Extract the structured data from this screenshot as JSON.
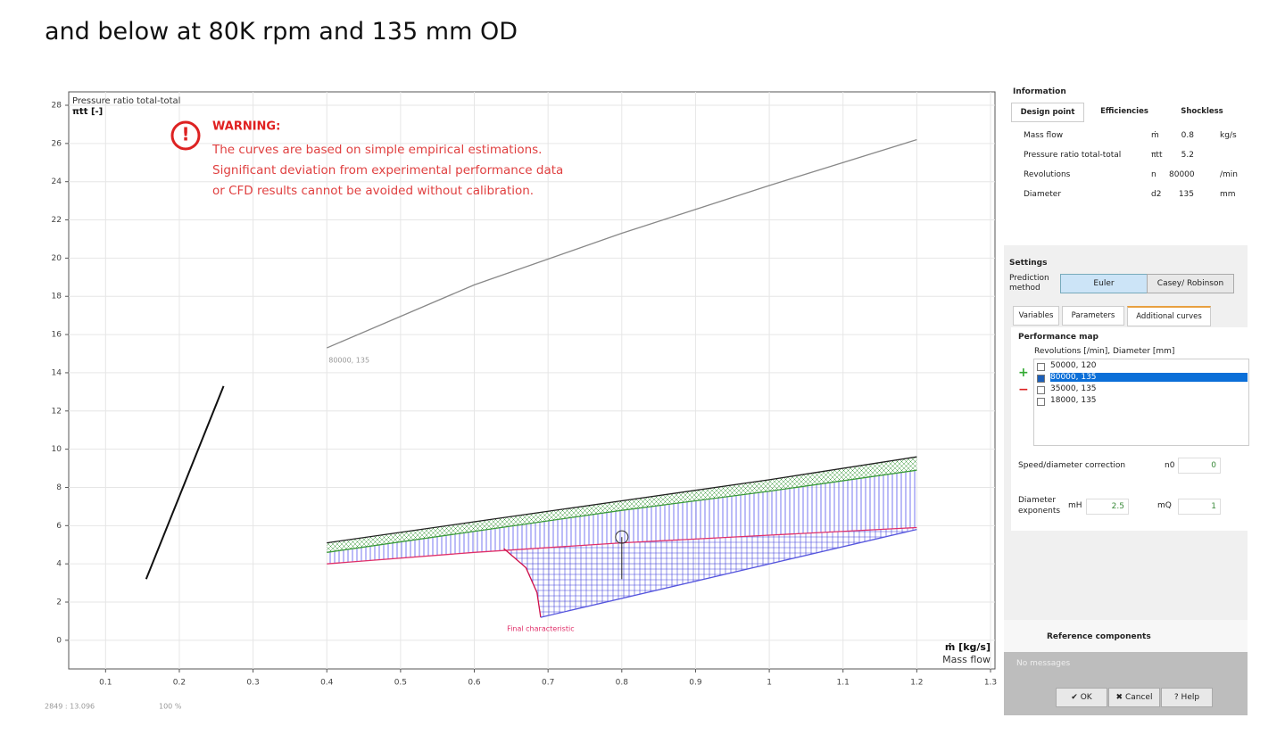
{
  "heading": "and below at 80K rpm and 135 mm OD",
  "chart_data": {
    "type": "line",
    "y_label_title": "Pressure ratio total-total",
    "y_label": "πtt [-]",
    "x_label": "ṁ [kg/s]",
    "x_label_sub": "Mass flow",
    "warning_title": "WARNING:",
    "warning_lines": [
      "The curves are based on simple empirical estimations.",
      "Significant deviation from experimental performance data",
      "or CFD results cannot be avoided without calibration."
    ],
    "xlim": [
      0.05,
      1.3
    ],
    "ylim": [
      -1.5,
      28.7
    ],
    "xticks": [
      0.1,
      0.2,
      0.3,
      0.4,
      0.5,
      0.6,
      0.7,
      0.8,
      0.9,
      1,
      1.1,
      1.2,
      1.3
    ],
    "yticks": [
      0,
      2,
      4,
      6,
      8,
      10,
      12,
      14,
      16,
      18,
      20,
      22,
      24,
      26,
      28
    ],
    "grid": true,
    "curves": [
      {
        "label": "80000, 135",
        "color": "#888888",
        "x": [
          0.4,
          0.6,
          0.8,
          1.0,
          1.2
        ],
        "y": [
          15.3,
          18.6,
          21.3,
          23.8,
          26.2
        ]
      },
      {
        "color": "#111111",
        "x": [
          0.155,
          0.26
        ],
        "y": [
          3.2,
          13.3
        ]
      },
      {
        "color": "#222222",
        "x": [
          0.4,
          0.6,
          0.8,
          1.0,
          1.2
        ],
        "y": [
          5.1,
          6.2,
          7.3,
          8.4,
          9.6
        ]
      },
      {
        "color": "#3a9a3a",
        "x": [
          0.4,
          0.6,
          0.8,
          1.0,
          1.2
        ],
        "y": [
          4.6,
          5.7,
          6.8,
          7.8,
          8.9
        ]
      },
      {
        "label": "Final characteristic",
        "color": "#e0306a",
        "x": [
          0.4,
          0.6,
          0.8,
          1.0,
          1.2
        ],
        "y": [
          4.0,
          4.6,
          5.1,
          5.5,
          5.9
        ]
      },
      {
        "color": "#d0104a",
        "x": [
          0.64,
          0.67,
          0.685,
          0.69
        ],
        "y": [
          4.8,
          3.8,
          2.5,
          1.2
        ]
      },
      {
        "color": "#5555dd",
        "x": [
          0.69,
          1.2
        ],
        "y": [
          1.2,
          5.8
        ]
      }
    ],
    "operating_point": {
      "x": 0.8,
      "y": 5.4,
      "y_low": 3.2
    },
    "status": [
      "2849 : 13.096",
      "100 %"
    ]
  },
  "panel": {
    "info_title": "Information",
    "info_tabs": [
      "Design point",
      "Efficiencies",
      "Shockless"
    ],
    "info_rows": [
      [
        "Mass flow",
        "ṁ",
        "0.8",
        "kg/s"
      ],
      [
        "Pressure ratio total-total",
        "πtt",
        "5.2",
        ""
      ],
      [
        "Revolutions",
        "n",
        "80000",
        "/min"
      ],
      [
        "Diameter",
        "d2",
        "135",
        "mm"
      ]
    ],
    "settings_title": "Settings",
    "prediction_label": "Prediction method",
    "prediction_buttons": [
      "Euler",
      "Casey/ Robinson"
    ],
    "tabs": [
      "Variables",
      "Parameters",
      "Additional curves"
    ],
    "perf_title": "Performance map",
    "list_header": "Revolutions [/min], Diameter [mm]",
    "list_items": [
      "50000, 120",
      "80000, 135",
      "35000, 135",
      "18000, 135"
    ],
    "speed_label": "Speed/diameter correction",
    "n0_label": "n0",
    "n0_value": "0",
    "diam_label": "Diameter exponents",
    "mH_label": "mH",
    "mH_value": "2.5",
    "mQ_label": "mQ",
    "mQ_value": "1",
    "reference": "Reference components",
    "messages": "No messages",
    "buttons": [
      "✔ OK",
      "✖ Cancel",
      "? Help"
    ]
  }
}
